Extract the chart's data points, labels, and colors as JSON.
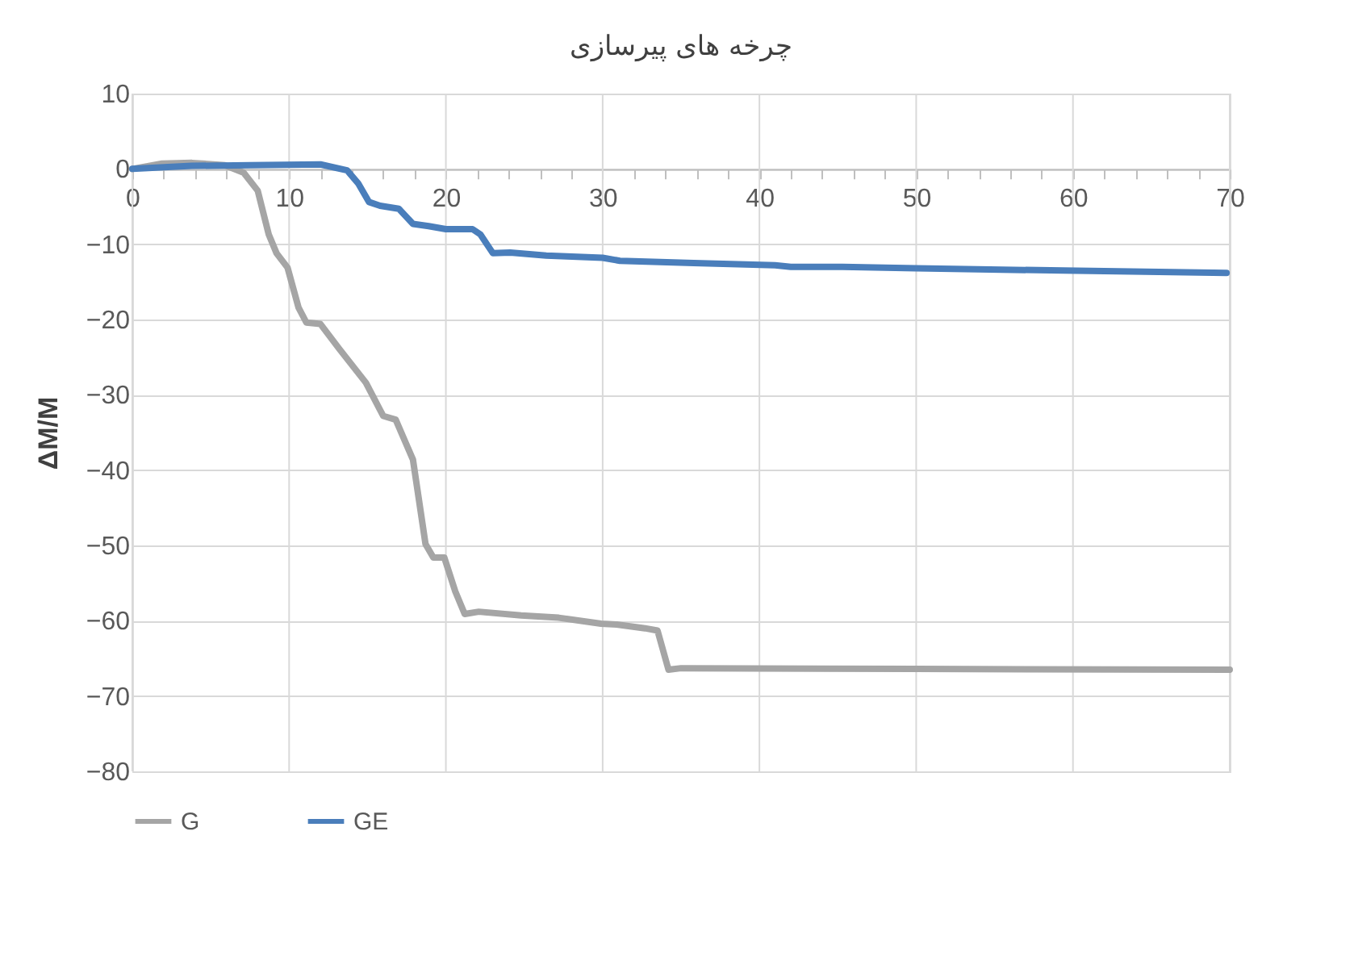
{
  "chart_data": {
    "type": "line",
    "title": "چرخه های پیرسازی",
    "ylabel": "ΔM/M",
    "xlim": [
      0,
      70
    ],
    "xticks": [
      0,
      {
        "value": 2,
        "label": null
      },
      {
        "value": 4,
        "label": null
      },
      {
        "value": 6,
        "label": null
      },
      {
        "value": 8,
        "label": null
      },
      10,
      {
        "value": 12,
        "label": null
      },
      {
        "value": 14,
        "label": null
      },
      {
        "value": 16,
        "label": null
      },
      {
        "value": 18,
        "label": null
      },
      20,
      {
        "value": 22,
        "label": null
      },
      {
        "value": 24,
        "label": null
      },
      {
        "value": 26,
        "label": null
      },
      {
        "value": 28,
        "label": null
      },
      30,
      {
        "value": 32,
        "label": null
      },
      {
        "value": 34,
        "label": null
      },
      {
        "value": 36,
        "label": null
      },
      {
        "value": 38,
        "label": null
      },
      40,
      {
        "value": 42,
        "label": null
      },
      {
        "value": 44,
        "label": null
      },
      {
        "value": 46,
        "label": null
      },
      {
        "value": 48,
        "label": null
      },
      50,
      {
        "value": 52,
        "label": null
      },
      {
        "value": 54,
        "label": null
      },
      {
        "value": 56,
        "label": null
      },
      {
        "value": 58,
        "label": null
      },
      60,
      {
        "value": 62,
        "label": null
      },
      {
        "value": 64,
        "label": null
      },
      {
        "value": 66,
        "label": null
      },
      {
        "value": 68,
        "label": null
      },
      70
    ],
    "ylim": [
      -80,
      10
    ],
    "yticks": [
      -80,
      -70,
      -60,
      -50,
      -40,
      -30,
      -20,
      -10,
      0,
      10
    ],
    "grid": true,
    "legend": "bottom",
    "line_style": "solid",
    "marker": "none",
    "series": [
      {
        "name": "G",
        "color": "#a5a5a5",
        "x": [
          0,
          1.9,
          3.8,
          5.9,
          7.1,
          8.0,
          8.7,
          9.2,
          9.9,
          10.6,
          11.1,
          12.0,
          13.2,
          14.9,
          16.0,
          16.8,
          17.9,
          18.7,
          19.2,
          19.9,
          20.6,
          21.2,
          22.1,
          24.8,
          27.2,
          29.9,
          30.9,
          32.7,
          33.5,
          34.2,
          35,
          50,
          70
        ],
        "values": [
          0,
          0.7,
          0.8,
          0.5,
          -0.5,
          -2.9,
          -8.7,
          -11.2,
          -13.1,
          -18.4,
          -20.4,
          -20.6,
          -23.9,
          -28.4,
          -32.8,
          -33.3,
          -38.6,
          -49.8,
          -51.6,
          -51.6,
          -56.1,
          -59.1,
          -58.8,
          -59.3,
          -59.6,
          -60.4,
          -60.5,
          -61,
          -61.3,
          -66.5,
          -66.3,
          -66.4,
          -66.5
        ]
      },
      {
        "name": "GE",
        "color": "#4a7ebb",
        "x": [
          0,
          3.8,
          7.5,
          12.0,
          13.7,
          14.4,
          15.1,
          15.8,
          17.0,
          17.9,
          18.9,
          20.0,
          21.7,
          22.2,
          23.0,
          24.1,
          26.4,
          30.0,
          31.1,
          35.8,
          41.0,
          42.0,
          45.3,
          50.0,
          59.4,
          69.8
        ],
        "values": [
          0,
          0.4,
          0.5,
          0.6,
          -0.2,
          -1.9,
          -4.4,
          -4.9,
          -5.3,
          -7.3,
          -7.6,
          -8.0,
          -8.0,
          -8.7,
          -11.2,
          -11.1,
          -11.5,
          -11.8,
          -12.2,
          -12.5,
          -12.8,
          -13.0,
          -13.0,
          -13.2,
          -13.5,
          -13.8
        ]
      }
    ]
  }
}
